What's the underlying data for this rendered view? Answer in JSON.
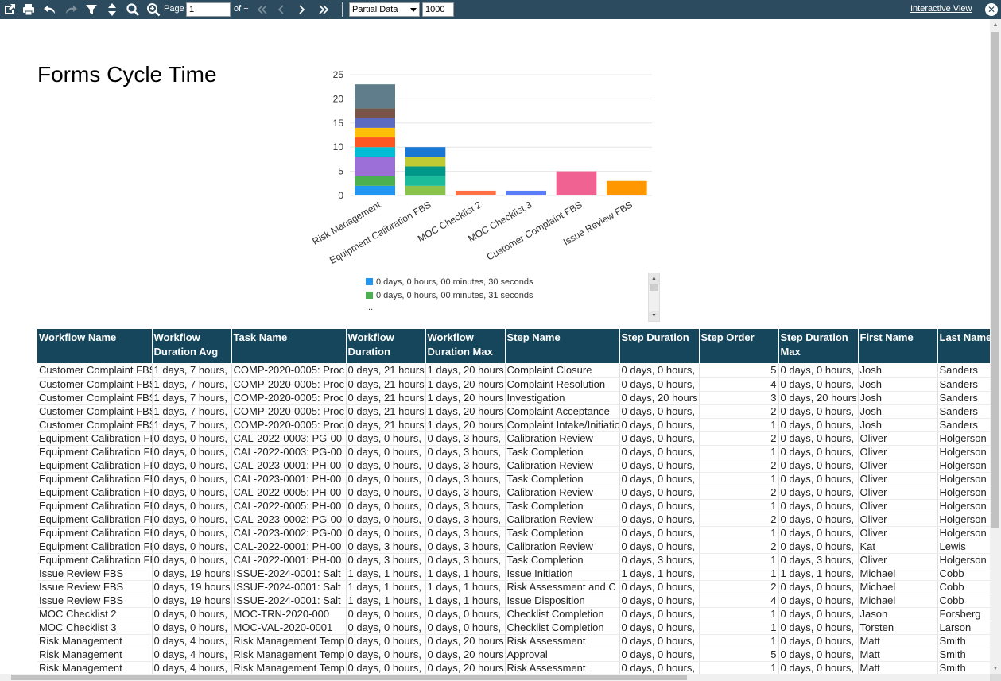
{
  "toolbar": {
    "page_label": "Page",
    "page_value": "1",
    "of_label": "of +",
    "data_mode": "Partial Data",
    "row_limit": "1000",
    "interactive_view": "Interactive View",
    "close_glyph": "✕"
  },
  "report": {
    "title": "Forms Cycle Time"
  },
  "chart_data": {
    "type": "bar",
    "stacked": true,
    "categories": [
      "Risk Management",
      "Equipment Calibration FBS",
      "MOC Checklist 2",
      "MOC Checklist 3",
      "Customer Complaint FBS",
      "Issue Review FBS"
    ],
    "ylim": [
      0,
      25
    ],
    "yticks": [
      0,
      5,
      10,
      15,
      20,
      25
    ],
    "grid": true,
    "stacks": [
      [
        {
          "v": 2,
          "c": "#2196f3"
        },
        {
          "v": 2,
          "c": "#4caf50"
        },
        {
          "v": 4,
          "c": "#9c6ed8"
        },
        {
          "v": 2,
          "c": "#00bcd4"
        },
        {
          "v": 2,
          "c": "#ff5722"
        },
        {
          "v": 2,
          "c": "#ffc107"
        },
        {
          "v": 2,
          "c": "#5c6bc0"
        },
        {
          "v": 2,
          "c": "#795548"
        },
        {
          "v": 5,
          "c": "#607d8b"
        }
      ],
      [
        {
          "v": 2,
          "c": "#8bc34a"
        },
        {
          "v": 2,
          "c": "#1abc9c"
        },
        {
          "v": 2,
          "c": "#009688"
        },
        {
          "v": 2,
          "c": "#c0ca33"
        },
        {
          "v": 2,
          "c": "#1976d2"
        }
      ],
      [
        {
          "v": 1,
          "c": "#ff7043"
        }
      ],
      [
        {
          "v": 1,
          "c": "#5c7cfa"
        }
      ],
      [
        {
          "v": 5,
          "c": "#f06292"
        }
      ],
      [
        {
          "v": 3,
          "c": "#ff9800"
        }
      ]
    ],
    "legend": [
      {
        "label": "0 days, 0 hours, 00 minutes, 30 seconds",
        "color": "#2196f3"
      },
      {
        "label": "0 days, 0 hours, 00 minutes, 31 seconds",
        "color": "#4caf50"
      }
    ],
    "legend_more": "..."
  },
  "table": {
    "columns": [
      "Workflow Name",
      "Workflow Duration Avg",
      "Task Name",
      "Workflow Duration",
      "Workflow Duration Max",
      "Step Name",
      "Step Duration",
      "Step Order",
      "Step Duration Max",
      "First Name",
      "Last Name"
    ],
    "rows": [
      [
        "Customer Complaint FBS",
        "1 days, 7 hours,",
        "COMP-2020-0005: Proc",
        "0 days, 21 hours",
        "1 days, 20 hours",
        "Complaint Closure",
        "0 days, 0 hours,",
        "5",
        "0 days, 0 hours,",
        "Josh",
        "Sanders"
      ],
      [
        "Customer Complaint FBS",
        "1 days, 7 hours,",
        "COMP-2020-0005: Proc",
        "0 days, 21 hours",
        "1 days, 20 hours",
        "Complaint Resolution",
        "0 days, 0 hours,",
        "4",
        "0 days, 0 hours,",
        "Josh",
        "Sanders"
      ],
      [
        "Customer Complaint FBS",
        "1 days, 7 hours,",
        "COMP-2020-0005: Proc",
        "0 days, 21 hours",
        "1 days, 20 hours",
        "Investigation",
        "0 days, 20 hours",
        "3",
        "0 days, 20 hours",
        "Josh",
        "Sanders"
      ],
      [
        "Customer Complaint FBS",
        "1 days, 7 hours,",
        "COMP-2020-0005: Proc",
        "0 days, 21 hours",
        "1 days, 20 hours",
        "Complaint Acceptance",
        "0 days, 0 hours,",
        "2",
        "0 days, 0 hours,",
        "Josh",
        "Sanders"
      ],
      [
        "Customer Complaint FBS",
        "1 days, 7 hours,",
        "COMP-2020-0005: Proc",
        "0 days, 21 hours",
        "1 days, 20 hours",
        "Complaint Intake/Initiation",
        "0 days, 0 hours,",
        "1",
        "0 days, 0 hours,",
        "Josh",
        "Sanders"
      ],
      [
        "Equipment Calibration FBS",
        "0 days, 0 hours,",
        "CAL-2022-0003: PG-00",
        "0 days, 0 hours,",
        "0 days, 3 hours,",
        "Calibration Review",
        "0 days, 0 hours,",
        "2",
        "0 days, 0 hours,",
        "Oliver",
        "Holgerson"
      ],
      [
        "Equipment Calibration FBS",
        "0 days, 0 hours,",
        "CAL-2022-0003: PG-00",
        "0 days, 0 hours,",
        "0 days, 3 hours,",
        "Task Completion",
        "0 days, 0 hours,",
        "1",
        "0 days, 0 hours,",
        "Oliver",
        "Holgerson"
      ],
      [
        "Equipment Calibration FBS",
        "0 days, 0 hours,",
        "CAL-2023-0001: PH-00",
        "0 days, 0 hours,",
        "0 days, 3 hours,",
        "Calibration Review",
        "0 days, 0 hours,",
        "2",
        "0 days, 0 hours,",
        "Oliver",
        "Holgerson"
      ],
      [
        "Equipment Calibration FBS",
        "0 days, 0 hours,",
        "CAL-2023-0001: PH-00",
        "0 days, 0 hours,",
        "0 days, 3 hours,",
        "Task Completion",
        "0 days, 0 hours,",
        "1",
        "0 days, 0 hours,",
        "Oliver",
        "Holgerson"
      ],
      [
        "Equipment Calibration FBS",
        "0 days, 0 hours,",
        "CAL-2022-0005: PH-00",
        "0 days, 0 hours,",
        "0 days, 3 hours,",
        "Calibration Review",
        "0 days, 0 hours,",
        "2",
        "0 days, 0 hours,",
        "Oliver",
        "Holgerson"
      ],
      [
        "Equipment Calibration FBS",
        "0 days, 0 hours,",
        "CAL-2022-0005: PH-00",
        "0 days, 0 hours,",
        "0 days, 3 hours,",
        "Task Completion",
        "0 days, 0 hours,",
        "1",
        "0 days, 0 hours,",
        "Oliver",
        "Holgerson"
      ],
      [
        "Equipment Calibration FBS",
        "0 days, 0 hours,",
        "CAL-2023-0002: PG-00",
        "0 days, 0 hours,",
        "0 days, 3 hours,",
        "Calibration Review",
        "0 days, 0 hours,",
        "2",
        "0 days, 0 hours,",
        "Oliver",
        "Holgerson"
      ],
      [
        "Equipment Calibration FBS",
        "0 days, 0 hours,",
        "CAL-2023-0002: PG-00",
        "0 days, 0 hours,",
        "0 days, 3 hours,",
        "Task Completion",
        "0 days, 0 hours,",
        "1",
        "0 days, 0 hours,",
        "Oliver",
        "Holgerson"
      ],
      [
        "Equipment Calibration FBS",
        "0 days, 0 hours,",
        "CAL-2022-0001: PH-00",
        "0 days, 3 hours,",
        "0 days, 3 hours,",
        "Calibration Review",
        "0 days, 0 hours,",
        "2",
        "0 days, 0 hours,",
        "Kat",
        "Lewis"
      ],
      [
        "Equipment Calibration FBS",
        "0 days, 0 hours,",
        "CAL-2022-0001: PH-00",
        "0 days, 3 hours,",
        "0 days, 3 hours,",
        "Task Completion",
        "0 days, 3 hours,",
        "1",
        "0 days, 3 hours,",
        "Oliver",
        "Holgerson"
      ],
      [
        "Issue Review FBS",
        "0 days, 19 hours",
        "ISSUE-2024-0001: Salt",
        "1 days, 1 hours,",
        "1 days, 1 hours,",
        "Issue Initiation",
        "1 days, 1 hours,",
        "1",
        "1 days, 1 hours,",
        "Michael",
        "Cobb"
      ],
      [
        "Issue Review FBS",
        "0 days, 19 hours",
        "ISSUE-2024-0001: Salt",
        "1 days, 1 hours,",
        "1 days, 1 hours,",
        "Risk Assessment and C",
        "0 days, 0 hours,",
        "2",
        "0 days, 0 hours,",
        "Michael",
        "Cobb"
      ],
      [
        "Issue Review FBS",
        "0 days, 19 hours",
        "ISSUE-2024-0001: Salt",
        "1 days, 1 hours,",
        "1 days, 1 hours,",
        "Issue Disposition",
        "0 days, 0 hours,",
        "4",
        "0 days, 0 hours,",
        "Michael",
        "Cobb"
      ],
      [
        "MOC Checklist 2",
        "0 days, 0 hours,",
        "MOC-TRN-2020-000",
        "0 days, 0 hours,",
        "0 days, 0 hours,",
        "Checklist Completion",
        "0 days, 0 hours,",
        "1",
        "0 days, 0 hours,",
        "Jason",
        "Forsberg"
      ],
      [
        "MOC Checklist 3",
        "0 days, 0 hours,",
        "MOC-VAL-2020-0001",
        "0 days, 0 hours,",
        "0 days, 0 hours,",
        "Checklist Completion",
        "0 days, 0 hours,",
        "1",
        "0 days, 0 hours,",
        "Torsten",
        "Larson"
      ],
      [
        "Risk Management",
        "0 days, 4 hours,",
        "Risk Management Temp",
        "0 days, 0 hours,",
        "0 days, 20 hours",
        "Risk Assessment",
        "0 days, 0 hours,",
        "1",
        "0 days, 0 hours,",
        "Matt",
        "Smith"
      ],
      [
        "Risk Management",
        "0 days, 4 hours,",
        "Risk Management Temp",
        "0 days, 0 hours,",
        "0 days, 20 hours",
        "Approval",
        "0 days, 0 hours,",
        "5",
        "0 days, 0 hours,",
        "Matt",
        "Smith"
      ],
      [
        "Risk Management",
        "0 days, 4 hours,",
        "Risk Management Temp",
        "0 days, 0 hours,",
        "0 days, 20 hours",
        "Risk Assessment",
        "0 days, 0 hours,",
        "1",
        "0 days, 0 hours,",
        "Matt",
        "Smith"
      ]
    ]
  }
}
